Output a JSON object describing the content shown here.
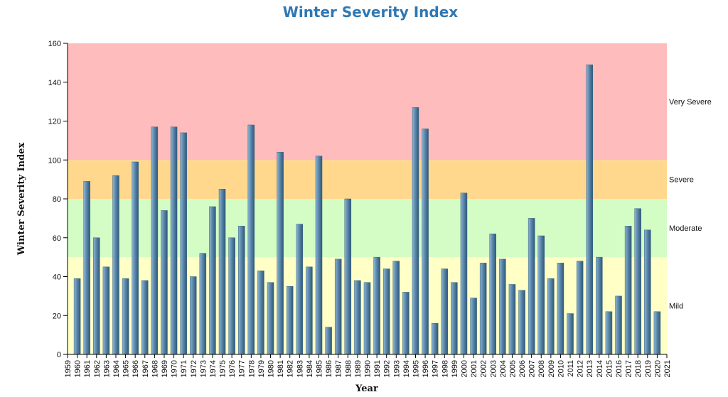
{
  "chart_data": {
    "type": "bar",
    "title": "Winter Severity Index",
    "xlabel": "Year",
    "ylabel": "Winter Severity Index",
    "ylim": [
      0,
      160
    ],
    "yticks": [
      0,
      20,
      40,
      60,
      80,
      100,
      120,
      140,
      160
    ],
    "categories": [
      "1959",
      "1960",
      "1961",
      "1962",
      "1963",
      "1964",
      "1965",
      "1966",
      "1967",
      "1968",
      "1969",
      "1970",
      "1971",
      "1972",
      "1973",
      "1974",
      "1975",
      "1976",
      "1977",
      "1978",
      "1979",
      "1980",
      "1981",
      "1982",
      "1983",
      "1984",
      "1985",
      "1986",
      "1987",
      "1988",
      "1989",
      "1990",
      "1991",
      "1992",
      "1993",
      "1994",
      "1995",
      "1996",
      "1997",
      "1998",
      "1999",
      "2000",
      "2001",
      "2002",
      "2003",
      "2004",
      "2005",
      "2006",
      "2007",
      "2008",
      "2009",
      "2010",
      "2011",
      "2012",
      "2013",
      "2014",
      "2015",
      "2016",
      "2017",
      "2018",
      "2019",
      "2020",
      "2021"
    ],
    "values": [
      null,
      39,
      89,
      60,
      45,
      92,
      39,
      99,
      38,
      117,
      74,
      117,
      114,
      40,
      52,
      76,
      85,
      60,
      66,
      118,
      43,
      37,
      104,
      35,
      67,
      45,
      102,
      14,
      49,
      80,
      38,
      37,
      50,
      44,
      48,
      32,
      127,
      116,
      16,
      44,
      37,
      83,
      29,
      47,
      62,
      49,
      36,
      33,
      70,
      61,
      39,
      47,
      21,
      48,
      149,
      50,
      22,
      30,
      66,
      75,
      64,
      22,
      null
    ],
    "bar_color": "#5b88ad",
    "bands": [
      {
        "label": "Mild",
        "from": 0,
        "to": 50,
        "color": "#ffffc6"
      },
      {
        "label": "Moderate",
        "from": 50,
        "to": 80,
        "color": "#d3fdc5"
      },
      {
        "label": "Severe",
        "from": 80,
        "to": 100,
        "color": "#ffd88e"
      },
      {
        "label": "Very Severe",
        "from": 100,
        "to": 160,
        "color": "#ffbcbc"
      }
    ]
  }
}
